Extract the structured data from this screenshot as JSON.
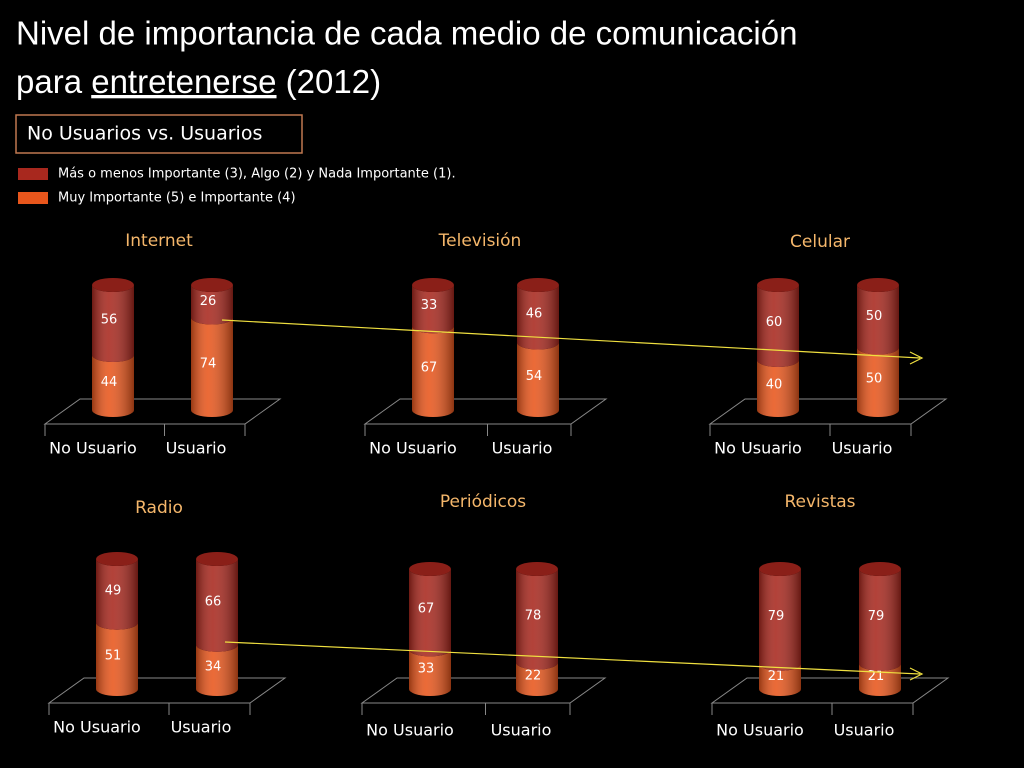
{
  "title": [
    "Nivel de importancia de cada medio de comunicación",
    "para ",
    "entretenerse",
    " (2012)"
  ],
  "subtitle": "No Usuarios vs. Usuarios",
  "legend": [
    {
      "name": "Más o menos Importante (3), Algo (2) y Nada Importante (1).",
      "color": "#a8281e"
    },
    {
      "name": "Muy Importante (5) e Importante (4)",
      "color": "#e8561c"
    }
  ],
  "chart_data": [
    {
      "type": "bar",
      "stacked": true,
      "title": "Internet",
      "categories": [
        "No Usuario",
        "Usuario"
      ],
      "series": [
        {
          "color": "#e8561c",
          "values": [
            44,
            74
          ]
        },
        {
          "color": "#a8281e",
          "values": [
            56,
            26
          ]
        }
      ]
    },
    {
      "type": "bar",
      "stacked": true,
      "title": "Televisión",
      "categories": [
        "No Usuario",
        "Usuario"
      ],
      "series": [
        {
          "color": "#e8561c",
          "values": [
            67,
            54
          ]
        },
        {
          "color": "#a8281e",
          "values": [
            33,
            46
          ]
        }
      ]
    },
    {
      "type": "bar",
      "stacked": true,
      "title": "Celular",
      "categories": [
        "No Usuario",
        "Usuario"
      ],
      "series": [
        {
          "color": "#e8561c",
          "values": [
            40,
            50
          ]
        },
        {
          "color": "#a8281e",
          "values": [
            60,
            50
          ]
        }
      ]
    },
    {
      "type": "bar",
      "stacked": true,
      "title": "Radio",
      "categories": [
        "No Usuario",
        "Usuario"
      ],
      "series": [
        {
          "color": "#e8561c",
          "values": [
            51,
            34
          ]
        },
        {
          "color": "#a8281e",
          "values": [
            49,
            66
          ]
        }
      ]
    },
    {
      "type": "bar",
      "stacked": true,
      "title": "Periódicos",
      "categories": [
        "No Usuario",
        "Usuario"
      ],
      "series": [
        {
          "color": "#e8561c",
          "values": [
            33,
            22
          ]
        },
        {
          "color": "#a8281e",
          "values": [
            67,
            78
          ]
        }
      ]
    },
    {
      "type": "bar",
      "stacked": true,
      "title": "Revistas",
      "categories": [
        "No Usuario",
        "Usuario"
      ],
      "series": [
        {
          "color": "#e8561c",
          "values": [
            21,
            21
          ]
        },
        {
          "color": "#a8281e",
          "values": [
            79,
            79
          ]
        }
      ]
    }
  ]
}
